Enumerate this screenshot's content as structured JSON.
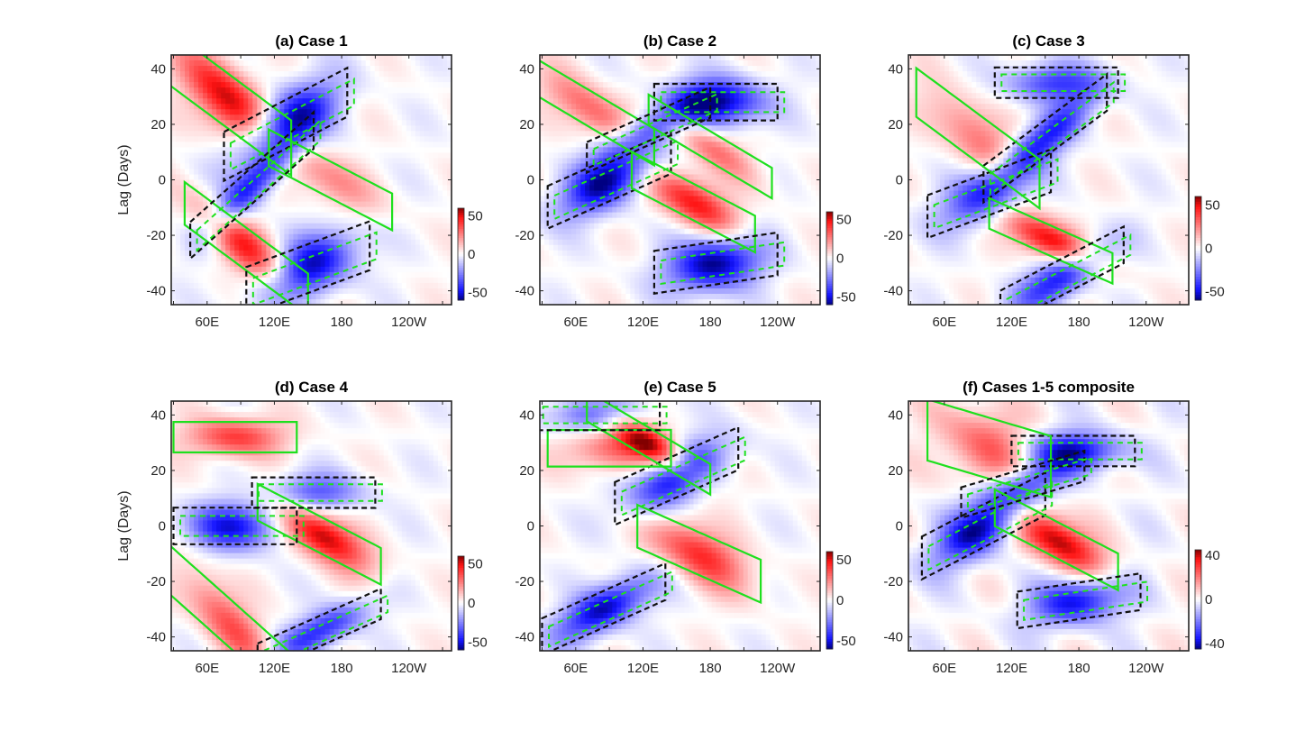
{
  "chart_data": [
    {
      "type": "heatmap",
      "title": "(a) Case 1",
      "xlabel": "",
      "ylabel": "Lag (Days)",
      "xticks": [
        "60E",
        "120E",
        "180",
        "120W"
      ],
      "yticks": [
        "-40",
        "-20",
        "0",
        "20",
        "40"
      ],
      "xlim_deg_east": [
        28,
        278
      ],
      "ylim": [
        -45,
        45
      ],
      "colorbar": {
        "ticks": [
          "-50",
          "0",
          "50"
        ],
        "range": [
          -60,
          60
        ]
      },
      "contours": {
        "solid_green": "positive",
        "dashed_green": "negative",
        "dashed_black": "negative (significant)"
      },
      "bands": [
        {
          "sign": 1,
          "lon0": 80,
          "lag0": 28,
          "slope": -0.5,
          "width": 9,
          "amp": 55
        },
        {
          "sign": -1,
          "lon0": 130,
          "lag0": 20,
          "slope": 0.35,
          "width": 8,
          "amp": 60
        },
        {
          "sign": 1,
          "lon0": 170,
          "lag0": 0,
          "slope": -0.35,
          "width": 6,
          "amp": 25
        },
        {
          "sign": 1,
          "lon0": 95,
          "lag0": -25,
          "slope": -0.5,
          "width": 7,
          "amp": 45
        },
        {
          "sign": -1,
          "lon0": 150,
          "lag0": -32,
          "slope": 0.25,
          "width": 8,
          "amp": 55
        },
        {
          "sign": -1,
          "lon0": 100,
          "lag0": -2,
          "slope": 0.6,
          "width": 6,
          "amp": 45
        }
      ]
    },
    {
      "type": "heatmap",
      "title": "(b) Case 2",
      "xticks": [
        "60E",
        "120E",
        "180",
        "120W"
      ],
      "yticks": [
        "-40",
        "-20",
        "0",
        "20",
        "40"
      ],
      "xlim_deg_east": [
        28,
        278
      ],
      "ylim": [
        -45,
        45
      ],
      "colorbar": {
        "ticks": [
          "-50",
          "0",
          "50"
        ],
        "range": [
          -60,
          60
        ]
      },
      "bands": [
        {
          "sign": -1,
          "lon0": 90,
          "lag0": 0,
          "slope": 0.3,
          "width": 7,
          "amp": 60
        },
        {
          "sign": -1,
          "lon0": 185,
          "lag0": 28,
          "slope": 0.0,
          "width": 6,
          "amp": 60
        },
        {
          "sign": 1,
          "lon0": 165,
          "lag0": -8,
          "slope": -0.35,
          "width": 6,
          "amp": 50
        },
        {
          "sign": 1,
          "lon0": 75,
          "lag0": 25,
          "slope": -0.4,
          "width": 6,
          "amp": 35
        },
        {
          "sign": -1,
          "lon0": 185,
          "lag0": -30,
          "slope": 0.1,
          "width": 7,
          "amp": 60
        },
        {
          "sign": 1,
          "lon0": 180,
          "lag0": 12,
          "slope": -0.4,
          "width": 5,
          "amp": 30
        },
        {
          "sign": -1,
          "lon0": 125,
          "lag0": 18,
          "slope": 0.3,
          "width": 5,
          "amp": 35
        }
      ]
    },
    {
      "type": "heatmap",
      "title": "(c) Case 3",
      "xticks": [
        "60E",
        "120E",
        "180",
        "120W"
      ],
      "yticks": [
        "-40",
        "-20",
        "0",
        "20",
        "40"
      ],
      "xlim_deg_east": [
        28,
        278
      ],
      "ylim": [
        -45,
        45
      ],
      "colorbar": {
        "ticks": [
          "-50",
          "0",
          "50"
        ],
        "range": [
          -60,
          60
        ]
      },
      "bands": [
        {
          "sign": -1,
          "lon0": 100,
          "lag0": -5,
          "slope": 0.25,
          "width": 7,
          "amp": 45
        },
        {
          "sign": -1,
          "lon0": 150,
          "lag0": 15,
          "slope": 0.5,
          "width": 6,
          "amp": 45
        },
        {
          "sign": 1,
          "lon0": 90,
          "lag0": 15,
          "slope": -0.5,
          "width": 8,
          "amp": 30
        },
        {
          "sign": 1,
          "lon0": 155,
          "lag0": -22,
          "slope": -0.3,
          "width": 5,
          "amp": 55
        },
        {
          "sign": -1,
          "lon0": 165,
          "lag0": -35,
          "slope": 0.35,
          "width": 6,
          "amp": 50
        },
        {
          "sign": -1,
          "lon0": 160,
          "lag0": 35,
          "slope": 0,
          "width": 5,
          "amp": 40
        }
      ]
    },
    {
      "type": "heatmap",
      "title": "(d) Case 4",
      "xticks": [
        "60E",
        "120E",
        "180",
        "120W"
      ],
      "yticks": [
        "-40",
        "-20",
        "0",
        "20",
        "40"
      ],
      "xlim_deg_east": [
        28,
        278
      ],
      "ylim": [
        -45,
        45
      ],
      "colorbar": {
        "ticks": [
          "-50",
          "0",
          "50"
        ],
        "range": [
          -60,
          60
        ]
      },
      "bands": [
        {
          "sign": 1,
          "lon0": 160,
          "lag0": -3,
          "slope": -0.35,
          "width": 6,
          "amp": 60
        },
        {
          "sign": -1,
          "lon0": 85,
          "lag0": 0,
          "slope": 0,
          "width": 6,
          "amp": 50
        },
        {
          "sign": -1,
          "lon0": 155,
          "lag0": 12,
          "slope": 0,
          "width": 5,
          "amp": 35
        },
        {
          "sign": 1,
          "lon0": 80,
          "lag0": -35,
          "slope": -0.6,
          "width": 8,
          "amp": 35
        },
        {
          "sign": 1,
          "lon0": 85,
          "lag0": 32,
          "slope": 0,
          "width": 5,
          "amp": 40
        },
        {
          "sign": -1,
          "lon0": 160,
          "lag0": -38,
          "slope": 0.3,
          "width": 5,
          "amp": 45
        }
      ]
    },
    {
      "type": "heatmap",
      "title": "(e) Case 5",
      "xticks": [
        "60E",
        "120E",
        "180",
        "120W"
      ],
      "yticks": [
        "-40",
        "-20",
        "0",
        "20",
        "40"
      ],
      "xlim_deg_east": [
        28,
        278
      ],
      "ylim": [
        -45,
        45
      ],
      "colorbar": {
        "ticks": [
          "-50",
          "0",
          "50"
        ],
        "range": [
          -60,
          60
        ]
      },
      "bands": [
        {
          "sign": -1,
          "lon0": 150,
          "lag0": 18,
          "slope": 0.3,
          "width": 7,
          "amp": 55
        },
        {
          "sign": 1,
          "lon0": 125,
          "lag0": 30,
          "slope": -0.4,
          "width": 5,
          "amp": 50
        },
        {
          "sign": 1,
          "lon0": 170,
          "lag0": -10,
          "slope": -0.3,
          "width": 7,
          "amp": 45
        },
        {
          "sign": -1,
          "lon0": 85,
          "lag0": -30,
          "slope": 0.3,
          "width": 6,
          "amp": 55
        },
        {
          "sign": 1,
          "lon0": 90,
          "lag0": 28,
          "slope": 0,
          "width": 6,
          "amp": 30
        },
        {
          "sign": -1,
          "lon0": 80,
          "lag0": 40,
          "slope": 0,
          "width": 5,
          "amp": 40
        }
      ]
    },
    {
      "type": "heatmap",
      "title": "(f) Cases 1-5 composite",
      "xticks": [
        "60E",
        "120E",
        "180",
        "120W"
      ],
      "yticks": [
        "-40",
        "-20",
        "0",
        "20",
        "40"
      ],
      "xlim_deg_east": [
        28,
        278
      ],
      "ylim": [
        -45,
        45
      ],
      "colorbar": {
        "ticks": [
          "-40",
          "0",
          "40"
        ],
        "range": [
          -45,
          45
        ]
      },
      "bands": [
        {
          "sign": -1,
          "lon0": 95,
          "lag0": 0,
          "slope": 0.35,
          "width": 7,
          "amp": 45
        },
        {
          "sign": -1,
          "lon0": 175,
          "lag0": 27,
          "slope": 0,
          "width": 5,
          "amp": 40
        },
        {
          "sign": 1,
          "lon0": 160,
          "lag0": -5,
          "slope": -0.35,
          "width": 6,
          "amp": 45
        },
        {
          "sign": 1,
          "lon0": 100,
          "lag0": 28,
          "slope": -0.2,
          "width": 10,
          "amp": 25
        },
        {
          "sign": -1,
          "lon0": 180,
          "lag0": -27,
          "slope": 0.1,
          "width": 6,
          "amp": 38
        },
        {
          "sign": -1,
          "lon0": 130,
          "lag0": 15,
          "slope": 0.2,
          "width": 5,
          "amp": 25
        }
      ]
    }
  ]
}
